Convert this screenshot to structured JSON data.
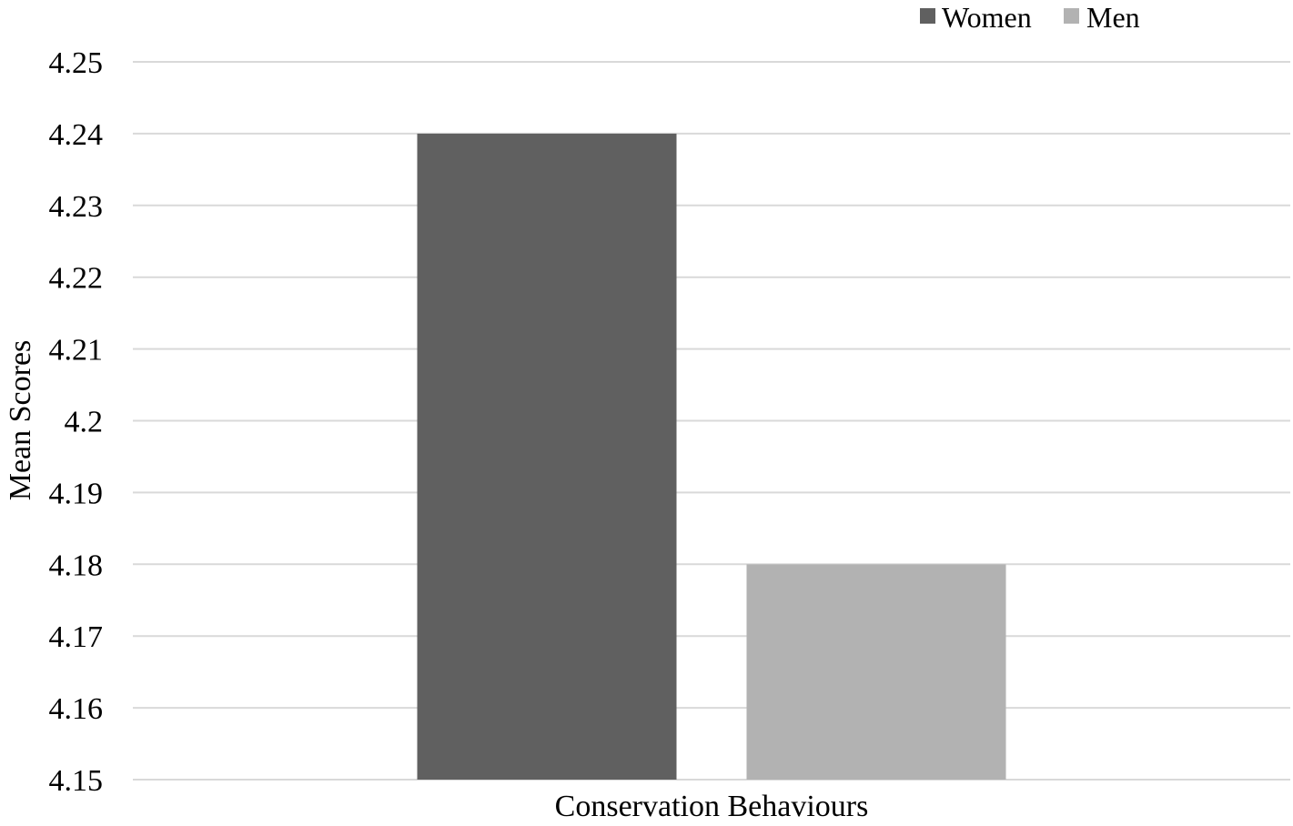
{
  "chart_data": {
    "type": "bar",
    "categories": [
      "Conservation Behaviours"
    ],
    "series": [
      {
        "name": "Women",
        "values": [
          4.24
        ],
        "color": "#606060"
      },
      {
        "name": "Men",
        "values": [
          4.18
        ],
        "color": "#b2b2b2"
      }
    ],
    "xlabel": "Conservation Behaviours",
    "ylabel": "Mean Scores",
    "ylim": [
      4.15,
      4.25
    ],
    "yticks": [
      "4.15",
      "4.16",
      "4.17",
      "4.18",
      "4.19",
      "4.2",
      "4.21",
      "4.22",
      "4.23",
      "4.24",
      "4.25"
    ],
    "grid": true,
    "legend_position": "top-right",
    "gridline_color": "#d9d9d9"
  }
}
